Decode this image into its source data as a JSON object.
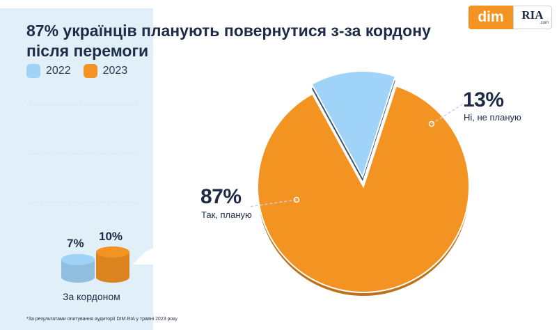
{
  "header": {
    "title": "87% українців планують повернутися з-за кордону після перемоги"
  },
  "logo": {
    "left_text": "dim",
    "right_text": "RIA",
    "right_suffix": ".com"
  },
  "legend": [
    {
      "label": "2022",
      "color": "#9fd3f7"
    },
    {
      "label": "2023",
      "color": "#f39322"
    }
  ],
  "left_chart": {
    "caption": "За кордоном",
    "bars": [
      {
        "year": "2022",
        "value_label": "7%",
        "value": 7,
        "color": "#9fd3f7"
      },
      {
        "year": "2023",
        "value_label": "10%",
        "value": 10,
        "color": "#f39322"
      }
    ]
  },
  "chart_data": {
    "type": "pie",
    "slices": [
      {
        "label": "Так, планую",
        "value": 87,
        "value_label": "87%",
        "color": "#f39322"
      },
      {
        "label": "Ні, не планую",
        "value": 13,
        "value_label": "13%",
        "color": "#9fd3f7"
      }
    ]
  },
  "footnote": "*За результатами опитування аудиторії DIM.RIA у травні 2023 року"
}
